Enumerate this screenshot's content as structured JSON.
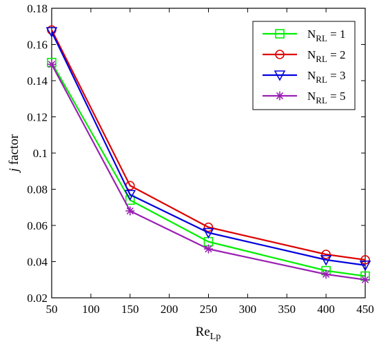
{
  "chart_data": {
    "type": "line",
    "xlabel": {
      "main": "Re",
      "sub": "Lp"
    },
    "ylabel": {
      "italic": "j",
      "rest": " factor"
    },
    "xlim": [
      50,
      450
    ],
    "ylim": [
      0.02,
      0.18
    ],
    "xticks": [
      50,
      100,
      150,
      200,
      250,
      300,
      350,
      400,
      450
    ],
    "yticks": [
      0.02,
      0.04,
      0.06,
      0.08,
      0.1,
      0.12,
      0.14,
      0.16,
      0.18
    ],
    "ytick_labels": [
      "0.02",
      "0.04",
      "0.06",
      "0.08",
      "0.1",
      "0.12",
      "0.14",
      "0.16",
      "0.18"
    ],
    "legend_position": "top-right",
    "x": [
      50,
      150,
      250,
      400,
      450
    ],
    "series": [
      {
        "name": "N",
        "sub": "RL",
        "suffix": " = 1",
        "color": "#00ee00",
        "marker": "square",
        "values": [
          0.15,
          0.074,
          0.051,
          0.035,
          0.032
        ]
      },
      {
        "name": "N",
        "sub": "RL",
        "suffix": " = 2",
        "color": "#dd0000",
        "marker": "circle",
        "values": [
          0.168,
          0.082,
          0.059,
          0.044,
          0.041
        ]
      },
      {
        "name": "N",
        "sub": "RL",
        "suffix": " = 3",
        "color": "#0000dd",
        "marker": "triangle-down",
        "values": [
          0.167,
          0.077,
          0.056,
          0.041,
          0.038
        ]
      },
      {
        "name": "N",
        "sub": "RL",
        "suffix": " = 5",
        "color": "#9b1fb4",
        "marker": "asterisk",
        "values": [
          0.149,
          0.068,
          0.047,
          0.033,
          0.03
        ]
      }
    ]
  }
}
